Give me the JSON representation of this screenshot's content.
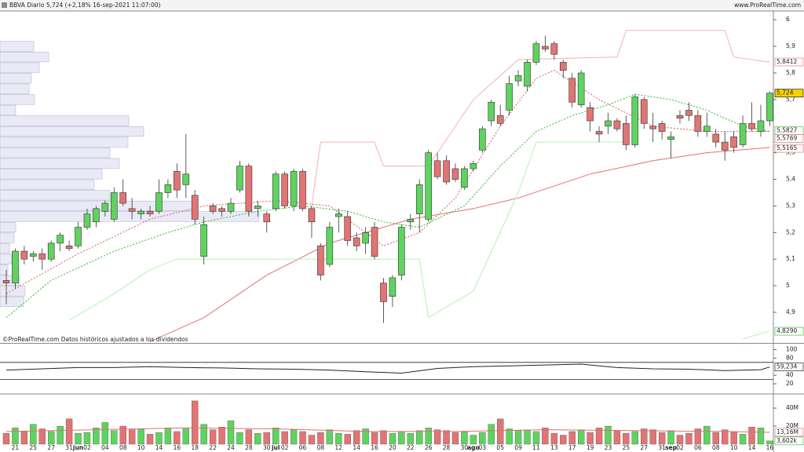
{
  "header": {
    "title": "BBVA Diario 5,724 (+2,18% 16-sep-2021 11:07:00)",
    "site": "www.ProRealTime.com"
  },
  "chart_data": [
    {
      "type": "candlestick",
      "source": "©ProRealTime.com Datos históricos ajustados a los dividendos",
      "up_color": "#5fd35f",
      "down_color": "#e27474",
      "ylim": [
        4.785,
        6.03
      ],
      "yticks": [
        6,
        {
          "value": 5.9,
          "label": "5,9"
        },
        {
          "value": 5.8,
          "label": "5,8"
        },
        {
          "value": 5.7,
          "label": "5,7"
        },
        {
          "value": 5.5,
          "label": "5,5"
        },
        {
          "value": 5.4,
          "label": "5,4"
        },
        {
          "value": 5.3,
          "label": "5,3"
        },
        {
          "value": 5.2,
          "label": "5,2"
        },
        {
          "value": 5.1,
          "label": "5,1"
        },
        5,
        {
          "value": 4.9,
          "label": "4,9"
        }
      ],
      "ohlc": [
        [
          5.02,
          5.06,
          4.93,
          5.01
        ],
        [
          5.01,
          5.14,
          4.99,
          5.13
        ],
        [
          5.13,
          5.15,
          5.08,
          5.1
        ],
        [
          5.11,
          5.13,
          5.09,
          5.12
        ],
        [
          5.12,
          5.14,
          5.06,
          5.1
        ],
        [
          5.1,
          5.17,
          5.09,
          5.16
        ],
        [
          5.16,
          5.2,
          5.13,
          5.19
        ],
        [
          5.15,
          5.17,
          5.13,
          5.14
        ],
        [
          5.15,
          5.24,
          5.14,
          5.22
        ],
        [
          5.22,
          5.29,
          5.21,
          5.27
        ],
        [
          5.24,
          5.3,
          5.22,
          5.29
        ],
        [
          5.28,
          5.32,
          5.26,
          5.31
        ],
        [
          5.25,
          5.37,
          5.24,
          5.35
        ],
        [
          5.35,
          5.4,
          5.3,
          5.31
        ],
        [
          5.29,
          5.33,
          5.25,
          5.28
        ],
        [
          5.27,
          5.29,
          5.25,
          5.28
        ],
        [
          5.28,
          5.3,
          5.26,
          5.27
        ],
        [
          5.28,
          5.4,
          5.27,
          5.35
        ],
        [
          5.35,
          5.4,
          5.33,
          5.38
        ],
        [
          5.43,
          5.46,
          5.33,
          5.36
        ],
        [
          5.38,
          5.57,
          5.33,
          5.42
        ],
        [
          5.34,
          5.36,
          5.23,
          5.25
        ],
        [
          5.11,
          5.26,
          5.08,
          5.23
        ],
        [
          5.3,
          5.31,
          5.27,
          5.28
        ],
        [
          5.29,
          5.3,
          5.26,
          5.28
        ],
        [
          5.28,
          5.33,
          5.27,
          5.31
        ],
        [
          5.36,
          5.47,
          5.35,
          5.45
        ],
        [
          5.45,
          5.46,
          5.26,
          5.28
        ],
        [
          5.29,
          5.32,
          5.26,
          5.3
        ],
        [
          5.27,
          5.28,
          5.2,
          5.24
        ],
        [
          5.29,
          5.43,
          5.28,
          5.42
        ],
        [
          5.42,
          5.43,
          5.29,
          5.3
        ],
        [
          5.3,
          5.44,
          5.28,
          5.43
        ],
        [
          5.43,
          5.44,
          5.28,
          5.29
        ],
        [
          5.29,
          5.3,
          5.18,
          5.24
        ],
        [
          5.15,
          5.16,
          5.02,
          5.04
        ],
        [
          5.08,
          5.24,
          5.07,
          5.22
        ],
        [
          5.26,
          5.29,
          5.2,
          5.27
        ],
        [
          5.26,
          5.28,
          5.15,
          5.17
        ],
        [
          5.18,
          5.2,
          5.13,
          5.15
        ],
        [
          5.16,
          5.22,
          5.12,
          5.2
        ],
        [
          5.22,
          5.24,
          5.1,
          5.11
        ],
        [
          5.01,
          5.03,
          4.86,
          4.94
        ],
        [
          4.96,
          5.04,
          4.92,
          5.03
        ],
        [
          5.04,
          5.23,
          5.02,
          5.22
        ],
        [
          5.24,
          5.27,
          5.21,
          5.25
        ],
        [
          5.27,
          5.4,
          5.2,
          5.38
        ],
        [
          5.25,
          5.51,
          5.24,
          5.5
        ],
        [
          5.47,
          5.5,
          5.4,
          5.41
        ],
        [
          5.47,
          5.49,
          5.38,
          5.39
        ],
        [
          5.44,
          5.46,
          5.39,
          5.4
        ],
        [
          5.37,
          5.45,
          5.36,
          5.44
        ],
        [
          5.44,
          5.47,
          5.43,
          5.46
        ],
        [
          5.51,
          5.6,
          5.5,
          5.59
        ],
        [
          5.62,
          5.7,
          5.6,
          5.69
        ],
        [
          5.64,
          5.68,
          5.6,
          5.61
        ],
        [
          5.66,
          5.79,
          5.64,
          5.76
        ],
        [
          5.77,
          5.81,
          5.75,
          5.79
        ],
        [
          5.75,
          5.85,
          5.73,
          5.84
        ],
        [
          5.84,
          5.92,
          5.83,
          5.91
        ],
        [
          5.9,
          5.94,
          5.88,
          5.89
        ],
        [
          5.91,
          5.92,
          5.85,
          5.87
        ],
        [
          5.84,
          5.85,
          5.78,
          5.81
        ],
        [
          5.78,
          5.8,
          5.67,
          5.69
        ],
        [
          5.68,
          5.81,
          5.67,
          5.8
        ],
        [
          5.67,
          5.69,
          5.58,
          5.62
        ],
        [
          5.58,
          5.6,
          5.54,
          5.57
        ],
        [
          5.6,
          5.65,
          5.57,
          5.62
        ],
        [
          5.62,
          5.63,
          5.58,
          5.59
        ],
        [
          5.61,
          5.64,
          5.51,
          5.53
        ],
        [
          5.53,
          5.72,
          5.52,
          5.71
        ],
        [
          5.7,
          5.71,
          5.59,
          5.61
        ],
        [
          5.6,
          5.65,
          5.54,
          5.59
        ],
        [
          5.61,
          5.62,
          5.55,
          5.58
        ],
        [
          5.55,
          5.58,
          5.48,
          5.56
        ],
        [
          5.64,
          5.66,
          5.61,
          5.63
        ],
        [
          5.66,
          5.69,
          5.62,
          5.64
        ],
        [
          5.64,
          5.66,
          5.56,
          5.58
        ],
        [
          5.58,
          5.65,
          5.56,
          5.6
        ],
        [
          5.57,
          5.59,
          5.52,
          5.54
        ],
        [
          5.54,
          5.58,
          5.47,
          5.51
        ],
        [
          5.56,
          5.58,
          5.5,
          5.52
        ],
        [
          5.53,
          5.64,
          5.52,
          5.61
        ],
        [
          5.61,
          5.69,
          5.58,
          5.59
        ],
        [
          5.58,
          5.68,
          5.56,
          5.62
        ],
        [
          5.62,
          5.73,
          5.6,
          5.724
        ]
      ],
      "volume_profile": {
        "color": "#eaeaf6",
        "bins": [
          4.92,
          4.96,
          5.0,
          5.04,
          5.08,
          5.12,
          5.16,
          5.2,
          5.24,
          5.28,
          5.32,
          5.36,
          5.4,
          5.44,
          5.48,
          5.52,
          5.56,
          5.6,
          5.64,
          5.68,
          5.72,
          5.76,
          5.8,
          5.84,
          5.88,
          5.92
        ],
        "values": [
          30,
          32,
          25,
          10,
          15,
          12,
          18,
          20,
          330,
          252,
          140,
          120,
          130,
          152,
          140,
          163,
          183,
          164,
          20,
          44,
          37,
          40,
          50,
          62,
          43
        ]
      },
      "lines": [
        {
          "color": "#e07070",
          "dashed": false,
          "x": [
            16,
            22,
            29,
            36,
            45,
            52,
            57,
            65,
            72,
            78,
            85
          ],
          "values": [
            4.79,
            4.88,
            5.04,
            5.16,
            5.25,
            5.29,
            5.33,
            5.42,
            5.47,
            5.5,
            5.52
          ]
        },
        {
          "color": "#2fb52f",
          "dashed": true,
          "x": [
            0,
            5,
            12,
            18,
            22,
            28,
            33,
            38,
            42,
            46,
            51,
            55,
            59,
            63,
            67,
            70,
            74,
            78,
            82,
            85
          ],
          "values": [
            4.88,
            5.02,
            5.13,
            5.2,
            5.24,
            5.28,
            5.3,
            5.28,
            5.24,
            5.22,
            5.3,
            5.45,
            5.58,
            5.64,
            5.68,
            5.72,
            5.7,
            5.66,
            5.6,
            5.58
          ]
        },
        {
          "color": "#d06060",
          "dashed": true,
          "x": [
            0,
            8,
            16,
            22,
            30,
            36,
            42,
            46,
            50,
            55,
            59,
            61,
            66,
            72,
            78,
            85
          ],
          "values": [
            4.97,
            5.12,
            5.25,
            5.3,
            5.32,
            5.3,
            5.15,
            5.2,
            5.33,
            5.6,
            5.78,
            5.81,
            5.7,
            5.6,
            5.58,
            5.58
          ]
        },
        {
          "color": "#f7b0b0",
          "dashed": false,
          "x": [
            34,
            35,
            41,
            42,
            47,
            52,
            57,
            68,
            69,
            80,
            81,
            85
          ],
          "values": [
            5.3,
            5.54,
            5.54,
            5.45,
            5.45,
            5.7,
            5.85,
            5.86,
            5.96,
            5.96,
            5.86,
            5.84
          ]
        },
        {
          "color": "#b5f0b5",
          "dashed": false,
          "x": [
            7,
            12,
            16,
            19,
            46,
            47,
            52,
            57,
            59,
            69,
            70,
            82,
            85
          ],
          "values": [
            4.87,
            4.97,
            5.06,
            5.1,
            5.1,
            4.88,
            4.98,
            5.35,
            5.54,
            5.54,
            null,
            4.8,
            4.83
          ]
        }
      ],
      "markers": [
        {
          "value": 5.8412,
          "label": "5,8412",
          "color": "#e07070"
        },
        {
          "value": 5.724,
          "label": "5,724",
          "color": "#000000",
          "fill": "#f5d000"
        },
        {
          "value": 5.5827,
          "label": "5,5827",
          "color": "#2fb52f"
        },
        {
          "value": 5.5769,
          "label": "5,5769",
          "color": "#d06060"
        },
        {
          "value": 5.5165,
          "label": "5,5165",
          "color": "#d06060"
        },
        {
          "value": 4.829,
          "label": "4,8290",
          "color": "#2fb52f"
        }
      ]
    },
    {
      "type": "line",
      "color": "#222222",
      "ylim": [
        0,
        110
      ],
      "yticks": [
        100,
        80,
        40,
        20
      ],
      "levels": [
        70,
        30
      ],
      "x": [
        0,
        4,
        8,
        12,
        16,
        20,
        24,
        28,
        32,
        36,
        40,
        44,
        48,
        52,
        56,
        60,
        64,
        68,
        72,
        76,
        80,
        84,
        85
      ],
      "values": [
        52,
        55,
        58,
        58,
        60,
        58,
        57,
        55,
        54,
        52,
        48,
        45,
        56,
        60,
        62,
        64,
        66,
        58,
        55,
        54,
        51,
        53,
        59.234
      ],
      "markers": [
        {
          "value": 59.234,
          "label": "59,234",
          "color": "#000000"
        }
      ]
    },
    {
      "type": "bar",
      "ylim": [
        0,
        54
      ],
      "yticks": [
        {
          "value": 40,
          "label": "40M"
        },
        {
          "value": 20,
          "label": "20M"
        }
      ],
      "categories": [
        null,
        "21",
        null,
        "25",
        null,
        "27",
        null,
        "31",
        "jun",
        "02",
        null,
        "04",
        null,
        "08",
        null,
        "10",
        null,
        "14",
        null,
        "16",
        null,
        "18",
        null,
        "22",
        null,
        "24",
        null,
        "28",
        null,
        "30",
        "jul",
        "02",
        null,
        "06",
        null,
        "08",
        null,
        "12",
        null,
        "14",
        null,
        "16",
        null,
        "20",
        null,
        "22",
        null,
        "26",
        null,
        "28",
        null,
        "30",
        "ago",
        "03",
        null,
        "05",
        null,
        "09",
        null,
        "11",
        null,
        "13",
        null,
        "17",
        null,
        "19",
        null,
        "23",
        null,
        "25",
        null,
        "27",
        null,
        "31",
        "sep",
        "02",
        null,
        "06",
        null,
        "08",
        null,
        "10",
        null,
        "14",
        null,
        "16"
      ],
      "values": [
        12,
        18,
        14,
        22,
        17,
        14,
        20,
        28,
        12,
        13,
        18,
        24,
        15,
        20,
        16,
        17,
        11,
        13,
        18,
        14,
        17,
        48,
        22,
        16,
        19,
        26,
        13,
        16,
        12,
        13,
        18,
        14,
        16,
        14,
        10,
        13,
        16,
        12,
        11,
        15,
        17,
        13,
        15,
        12,
        14,
        12,
        15,
        18,
        16,
        15,
        13,
        14,
        10,
        13,
        22,
        28,
        17,
        15,
        16,
        14,
        18,
        12,
        10,
        14,
        16,
        13,
        18,
        20,
        15,
        12,
        14,
        17,
        16,
        13,
        15,
        10,
        12,
        17,
        20,
        13,
        16,
        14,
        11,
        19,
        18,
        3.602
      ],
      "lines": [
        {
          "color": "#e07070",
          "dashed": false,
          "x": [
            0,
            10,
            20,
            30,
            40,
            50,
            60,
            70,
            80,
            85
          ],
          "values": [
            14,
            16,
            18,
            17,
            14,
            14,
            16,
            15,
            14,
            13.16
          ]
        }
      ],
      "markers": [
        {
          "value": 13.16,
          "label": "13,16M",
          "color": "#d06060"
        },
        {
          "value": 3.602,
          "label": "3,602k",
          "color": "#2fb52f"
        }
      ]
    }
  ]
}
